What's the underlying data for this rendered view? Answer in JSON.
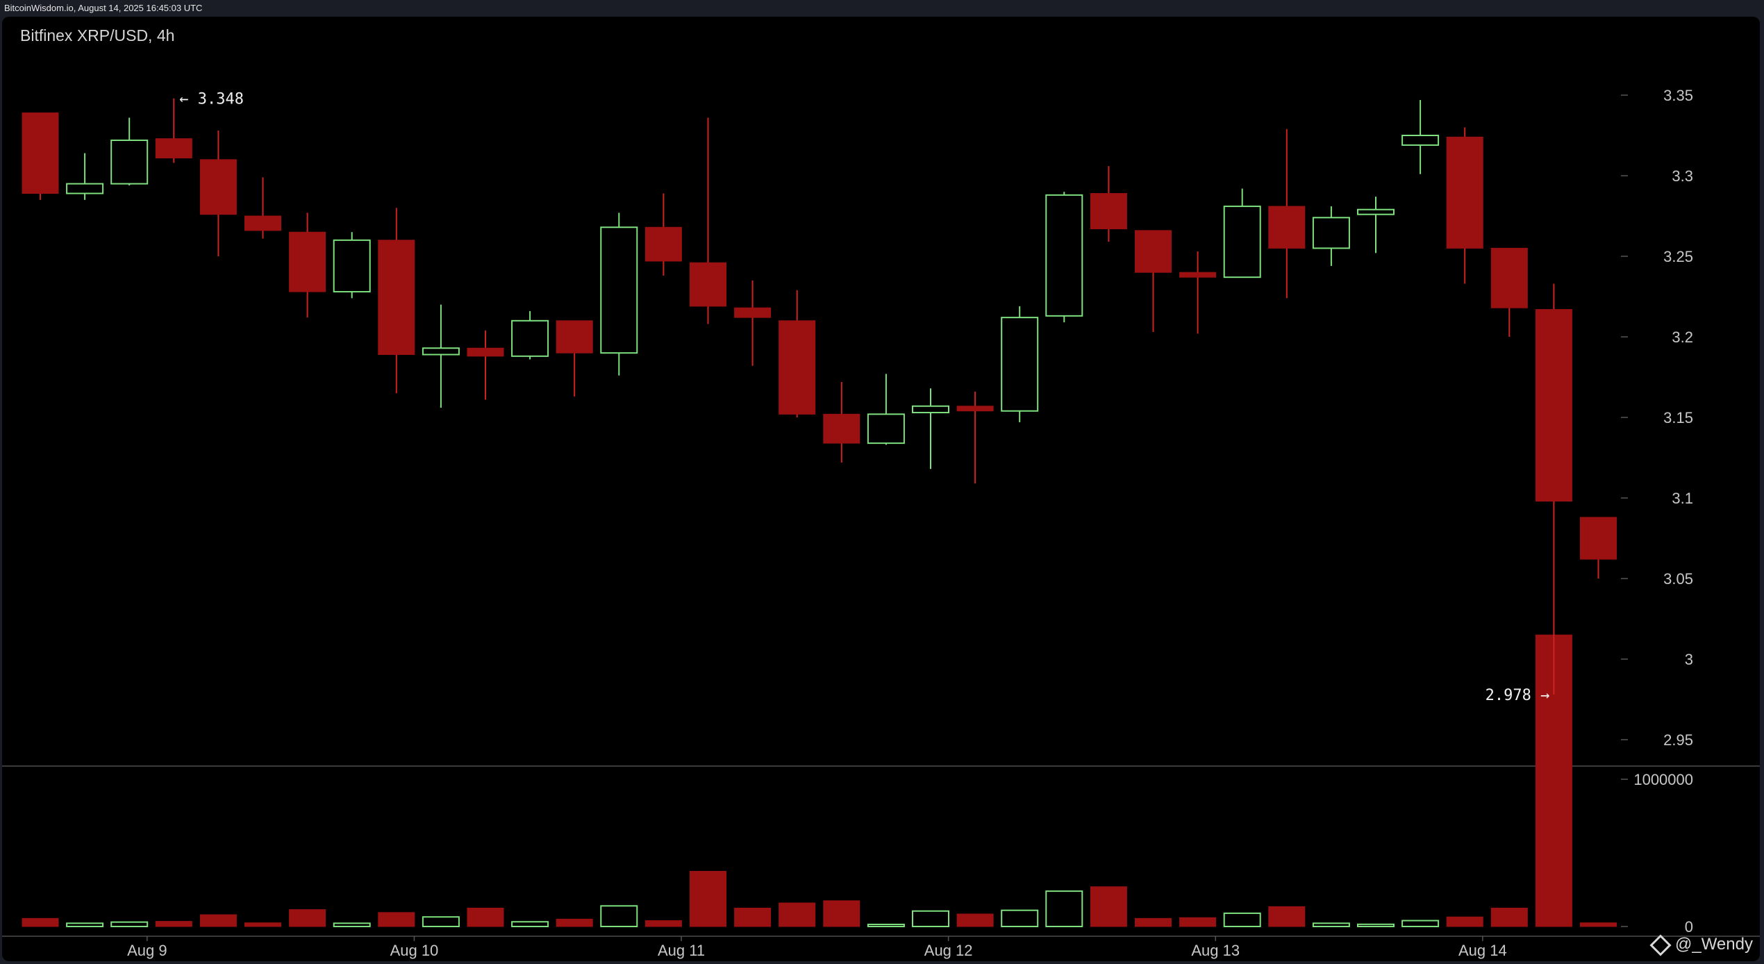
{
  "source": "BitcoinWisdom.io, August 14, 2025 16:45:03 UTC",
  "title": "Bitfinex XRP/USD, 4h",
  "watermark": "@_Wendy",
  "colors": {
    "up": "#7ee07e",
    "down": "#9b1111",
    "down_wick": "#cc2222",
    "axis_text": "#c8c8c8",
    "background": "#000000"
  },
  "chart_data": {
    "type": "candlestick",
    "exchange": "Bitfinex",
    "pair": "XRP/USD",
    "interval": "4h",
    "price_ticks": [
      "3.35",
      "3.3",
      "3.25",
      "3.2",
      "3.15",
      "3.1",
      "3.05",
      "3",
      "2.95"
    ],
    "volume_ticks": [
      "1000000",
      "0"
    ],
    "x_tick_labels": [
      "Aug 9",
      "Aug 10",
      "Aug 11",
      "Aug 12",
      "Aug 13",
      "Aug 14"
    ],
    "x_tick_index": [
      2.4,
      8.4,
      14.4,
      20.4,
      26.4,
      32.4
    ],
    "ylim": [
      2.925,
      3.385
    ],
    "volume_max": 2000000,
    "annotations": [
      {
        "label": "← 3.348",
        "price": 3.348,
        "index": 3
      },
      {
        "label": "2.978 →",
        "price": 2.978,
        "index": 34
      }
    ],
    "candles": [
      {
        "o": 3.339,
        "h": 3.339,
        "l": 3.285,
        "c": 3.289,
        "v": 55000
      },
      {
        "o": 3.289,
        "h": 3.314,
        "l": 3.285,
        "c": 3.295,
        "v": 22000
      },
      {
        "o": 3.295,
        "h": 3.336,
        "l": 3.294,
        "c": 3.322,
        "v": 30000
      },
      {
        "o": 3.323,
        "h": 3.348,
        "l": 3.308,
        "c": 3.311,
        "v": 35000
      },
      {
        "o": 3.31,
        "h": 3.328,
        "l": 3.25,
        "c": 3.276,
        "v": 80000
      },
      {
        "o": 3.275,
        "h": 3.299,
        "l": 3.261,
        "c": 3.266,
        "v": 25000
      },
      {
        "o": 3.265,
        "h": 3.277,
        "l": 3.212,
        "c": 3.228,
        "v": 115000
      },
      {
        "o": 3.228,
        "h": 3.265,
        "l": 3.224,
        "c": 3.26,
        "v": 22000
      },
      {
        "o": 3.26,
        "h": 3.28,
        "l": 3.165,
        "c": 3.189,
        "v": 95000
      },
      {
        "o": 3.189,
        "h": 3.22,
        "l": 3.156,
        "c": 3.193,
        "v": 65000
      },
      {
        "o": 3.193,
        "h": 3.204,
        "l": 3.161,
        "c": 3.188,
        "v": 125000
      },
      {
        "o": 3.188,
        "h": 3.216,
        "l": 3.186,
        "c": 3.21,
        "v": 32000
      },
      {
        "o": 3.21,
        "h": 3.21,
        "l": 3.163,
        "c": 3.19,
        "v": 50000
      },
      {
        "o": 3.19,
        "h": 3.277,
        "l": 3.176,
        "c": 3.268,
        "v": 140000
      },
      {
        "o": 3.268,
        "h": 3.289,
        "l": 3.238,
        "c": 3.247,
        "v": 40000
      },
      {
        "o": 3.246,
        "h": 3.336,
        "l": 3.208,
        "c": 3.219,
        "v": 375000
      },
      {
        "o": 3.218,
        "h": 3.235,
        "l": 3.182,
        "c": 3.212,
        "v": 125000
      },
      {
        "o": 3.21,
        "h": 3.229,
        "l": 3.15,
        "c": 3.152,
        "v": 160000
      },
      {
        "o": 3.152,
        "h": 3.172,
        "l": 3.122,
        "c": 3.134,
        "v": 175000
      },
      {
        "o": 3.134,
        "h": 3.177,
        "l": 3.133,
        "c": 3.152,
        "v": 10000
      },
      {
        "o": 3.153,
        "h": 3.168,
        "l": 3.118,
        "c": 3.157,
        "v": 105000
      },
      {
        "o": 3.157,
        "h": 3.166,
        "l": 3.109,
        "c": 3.154,
        "v": 85000
      },
      {
        "o": 3.154,
        "h": 3.219,
        "l": 3.147,
        "c": 3.212,
        "v": 110000
      },
      {
        "o": 3.213,
        "h": 3.29,
        "l": 3.209,
        "c": 3.288,
        "v": 240000
      },
      {
        "o": 3.289,
        "h": 3.306,
        "l": 3.259,
        "c": 3.267,
        "v": 270000
      },
      {
        "o": 3.266,
        "h": 3.266,
        "l": 3.203,
        "c": 3.24,
        "v": 55000
      },
      {
        "o": 3.24,
        "h": 3.253,
        "l": 3.202,
        "c": 3.237,
        "v": 60000
      },
      {
        "o": 3.237,
        "h": 3.292,
        "l": 3.237,
        "c": 3.281,
        "v": 90000
      },
      {
        "o": 3.281,
        "h": 3.329,
        "l": 3.224,
        "c": 3.255,
        "v": 135000
      },
      {
        "o": 3.255,
        "h": 3.281,
        "l": 3.244,
        "c": 3.274,
        "v": 22000
      },
      {
        "o": 3.276,
        "h": 3.287,
        "l": 3.252,
        "c": 3.279,
        "v": 15000
      },
      {
        "o": 3.319,
        "h": 3.347,
        "l": 3.301,
        "c": 3.325,
        "v": 40000
      },
      {
        "o": 3.324,
        "h": 3.33,
        "l": 3.233,
        "c": 3.255,
        "v": 65000
      },
      {
        "o": 3.255,
        "h": 3.255,
        "l": 3.2,
        "c": 3.218,
        "v": 125000
      },
      {
        "o": 3.217,
        "h": 3.233,
        "l": 2.978,
        "c": 3.098,
        "v": 1980000
      },
      {
        "o": 3.088,
        "h": 3.088,
        "l": 3.05,
        "c": 3.062,
        "v": 25000
      }
    ]
  }
}
